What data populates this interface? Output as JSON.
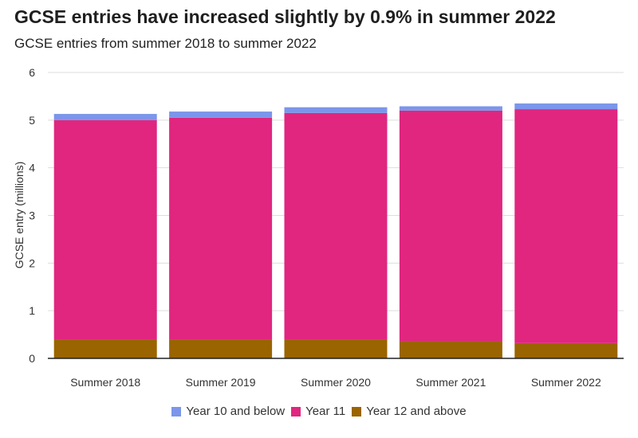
{
  "chart_data": {
    "type": "bar",
    "stacked": true,
    "title": "GCSE entries have increased slightly by 0.9% in summer 2022",
    "subtitle": "GCSE entries from summer 2018 to summer 2022",
    "xlabel": "",
    "ylabel": "GCSE entry (millions)",
    "ylim": [
      0,
      6
    ],
    "yticks": [
      0,
      1,
      2,
      3,
      4,
      5,
      6
    ],
    "grid": true,
    "legend_position": "bottom",
    "categories": [
      "Summer 2018",
      "Summer 2019",
      "Summer 2020",
      "Summer 2021",
      "Summer 2022"
    ],
    "series": [
      {
        "name": "Year 12 and above",
        "color": "#9a6400",
        "values": [
          0.4,
          0.4,
          0.4,
          0.36,
          0.32
        ]
      },
      {
        "name": "Year 11",
        "color": "#e0267f",
        "values": [
          4.6,
          4.65,
          4.75,
          4.84,
          4.91
        ]
      },
      {
        "name": "Year 10 and below",
        "color": "#7b96ea",
        "values": [
          0.13,
          0.13,
          0.12,
          0.09,
          0.12
        ]
      }
    ],
    "legend_order": [
      2,
      1,
      0
    ]
  }
}
